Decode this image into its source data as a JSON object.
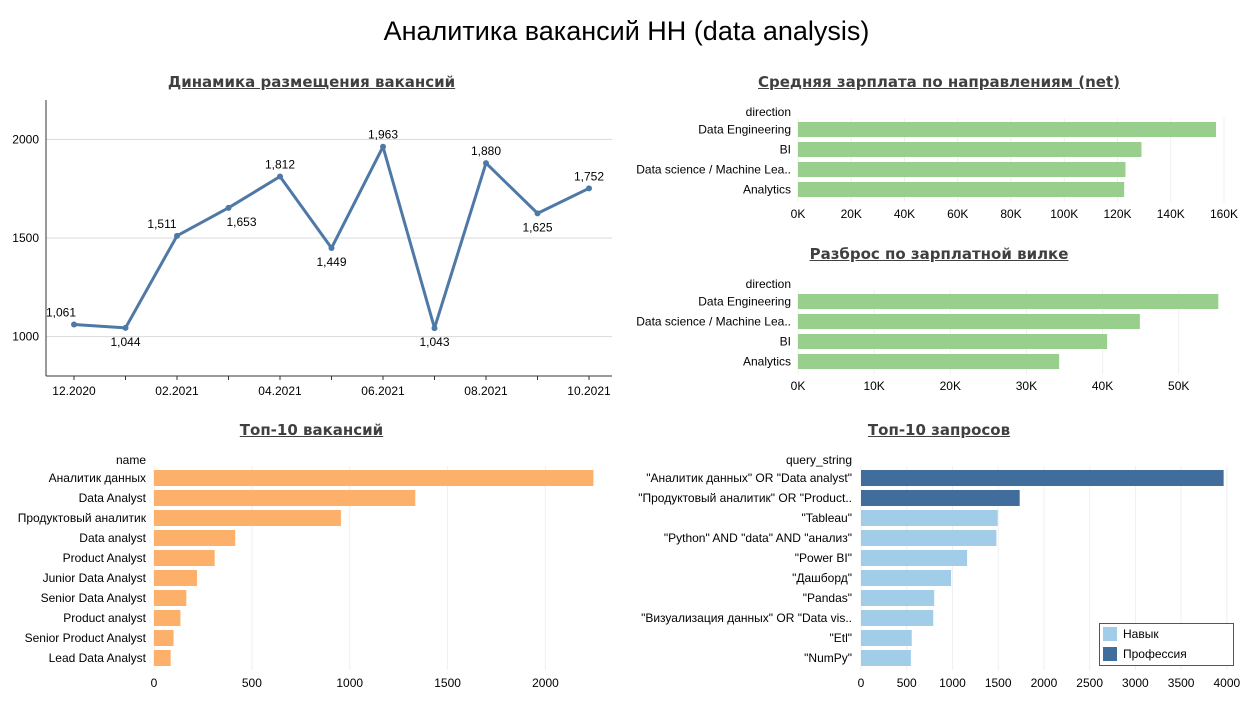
{
  "title": "Аналитика вакансий HH (data analysis)",
  "colors": {
    "line": "#4e79a7",
    "salary": "#98cf8c",
    "top_vacancies": "#fdb06a",
    "skill": "#a2cde9",
    "profession": "#416d9c",
    "grid": "#d9d9d9"
  },
  "chart_data": [
    {
      "id": "dynamics",
      "type": "line",
      "title": "Динамика размещения вакансий",
      "xlabel": "",
      "ylabel": "",
      "x": [
        "12.2020",
        "01.2021",
        "02.2021",
        "03.2021",
        "04.2021",
        "05.2021",
        "06.2021",
        "07.2021",
        "08.2021",
        "09.2021",
        "10.2021"
      ],
      "x_tick_labels": [
        "12.2020",
        "02.2021",
        "04.2021",
        "06.2021",
        "08.2021",
        "10.2021"
      ],
      "values": [
        1061,
        1044,
        1511,
        1653,
        1812,
        1449,
        1963,
        1043,
        1880,
        1625,
        1752
      ],
      "value_labels": [
        "1,061",
        "1,044",
        "1,511",
        "1,653",
        "1,812",
        "1,449",
        "1,963",
        "1,043",
        "1,880",
        "1,625",
        "1,752"
      ],
      "y_ticks": [
        1000,
        1500,
        2000
      ],
      "ylim": [
        800,
        2200
      ],
      "grid": true
    },
    {
      "id": "avg_salary",
      "type": "bar",
      "orientation": "horizontal",
      "title": "Средняя зарплата по направлениям (net)",
      "category_header": "direction",
      "categories": [
        "Data Engineering",
        "BI",
        "Data science / Machine Lea..",
        "Analytics"
      ],
      "values": [
        157000,
        129000,
        123000,
        122500
      ],
      "x_ticks": [
        "0K",
        "20K",
        "40K",
        "60K",
        "80K",
        "100K",
        "120K",
        "140K",
        "160K"
      ],
      "xlim": [
        0,
        163000
      ]
    },
    {
      "id": "salary_spread",
      "type": "bar",
      "orientation": "horizontal",
      "title": "Разброс по зарплатной вилке",
      "category_header": "direction",
      "categories": [
        "Data Engineering",
        "Data science / Machine Lea..",
        "BI",
        "Analytics"
      ],
      "values": [
        55200,
        44900,
        40600,
        34300
      ],
      "x_ticks": [
        "0K",
        "10K",
        "20K",
        "30K",
        "40K",
        "50K"
      ],
      "xlim": [
        0,
        57000
      ]
    },
    {
      "id": "top_vacancies",
      "type": "bar",
      "orientation": "horizontal",
      "title": "Топ-10 вакансий",
      "category_header": "name",
      "categories": [
        "Аналитик данных",
        "Data Analyst",
        "Продуктовый аналитик",
        "Data analyst",
        "Product Analyst",
        "Junior Data Analyst",
        "Senior Data Analyst",
        "Product analyst",
        "Senior Product Analyst",
        "Lead Data Analyst"
      ],
      "values": [
        2245,
        1335,
        955,
        415,
        310,
        220,
        165,
        135,
        100,
        85
      ],
      "x_ticks": [
        "0",
        "500",
        "1000",
        "1500",
        "2000"
      ],
      "xlim": [
        0,
        2340
      ]
    },
    {
      "id": "top_queries",
      "type": "bar",
      "orientation": "horizontal",
      "title": "Топ-10 запросов",
      "category_header": "query_string",
      "categories": [
        "\"Аналитик данных\" OR \"Data analyst\"",
        "\"Продуктовый аналитик\" OR \"Product..",
        "\"Tableau\"",
        "\"Python\" AND \"data\" AND \"анализ\"",
        "\"Power BI\"",
        "\"Дашборд\"",
        "\"Pandas\"",
        "\"Визуализация данных\" OR \"Data vis..",
        "\"Etl\"",
        "\"NumPy\""
      ],
      "values": [
        3965,
        1735,
        1495,
        1480,
        1160,
        985,
        800,
        790,
        555,
        545
      ],
      "kinds": [
        "Профессия",
        "Профессия",
        "Навык",
        "Навык",
        "Навык",
        "Навык",
        "Навык",
        "Навык",
        "Навык",
        "Навык"
      ],
      "x_ticks": [
        "0",
        "500",
        "1000",
        "1500",
        "2000",
        "2500",
        "3000",
        "3500",
        "4000"
      ],
      "xlim": [
        0,
        4100
      ],
      "legend": {
        "placement": "bottom-right",
        "items": [
          "Навык",
          "Профессия"
        ]
      }
    }
  ]
}
